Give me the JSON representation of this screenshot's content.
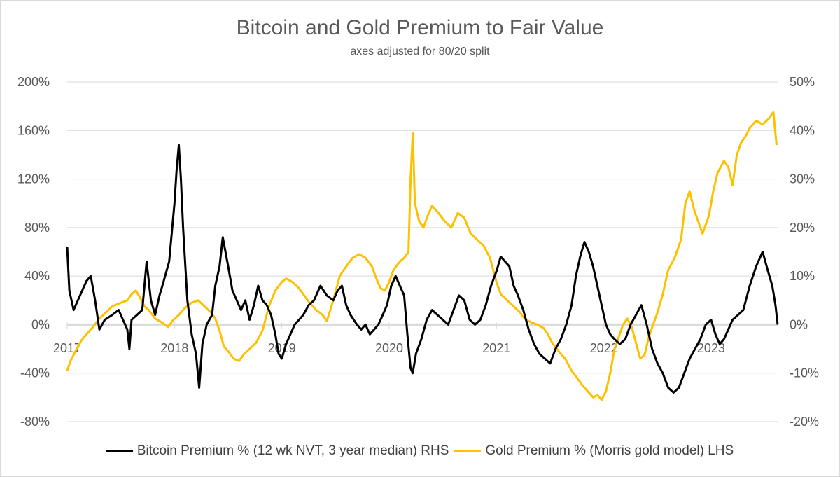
{
  "chart_data": {
    "type": "line",
    "title": "Bitcoin and Gold Premium to Fair Value",
    "subtitle": "axes adjusted for 80/20 split",
    "x_labels": [
      "2017",
      "2018",
      "2019",
      "2020",
      "2021",
      "2022",
      "2023"
    ],
    "x_range": [
      2017.0,
      2023.62
    ],
    "y_left": {
      "ticks": [
        "200%",
        "160%",
        "120%",
        "80%",
        "40%",
        "0%",
        "-40%",
        "-80%"
      ],
      "range": [
        -80,
        200
      ]
    },
    "y_right": {
      "ticks": [
        "50%",
        "40%",
        "30%",
        "20%",
        "10%",
        "0%",
        "-10%",
        "-20%"
      ],
      "range": [
        -20,
        50
      ]
    },
    "grid": true,
    "legend_position": "bottom",
    "series": [
      {
        "name": "Bitcoin Premium % (12 wk NVT, 3 year median) RHS",
        "axis": "right",
        "color": "#000000",
        "points": [
          [
            2017.0,
            16
          ],
          [
            2017.02,
            7
          ],
          [
            2017.06,
            3
          ],
          [
            2017.1,
            5
          ],
          [
            2017.14,
            7
          ],
          [
            2017.18,
            9
          ],
          [
            2017.22,
            10
          ],
          [
            2017.26,
            5
          ],
          [
            2017.3,
            -1
          ],
          [
            2017.35,
            1
          ],
          [
            2017.42,
            2
          ],
          [
            2017.48,
            3
          ],
          [
            2017.52,
            1
          ],
          [
            2017.56,
            -1
          ],
          [
            2017.58,
            -5
          ],
          [
            2017.6,
            1
          ],
          [
            2017.65,
            2
          ],
          [
            2017.7,
            3
          ],
          [
            2017.74,
            13
          ],
          [
            2017.78,
            5
          ],
          [
            2017.82,
            2
          ],
          [
            2017.86,
            6
          ],
          [
            2017.9,
            9
          ],
          [
            2017.95,
            13
          ],
          [
            2018.0,
            25
          ],
          [
            2018.02,
            32
          ],
          [
            2018.04,
            37
          ],
          [
            2018.06,
            30
          ],
          [
            2018.08,
            20
          ],
          [
            2018.12,
            5
          ],
          [
            2018.16,
            -2
          ],
          [
            2018.2,
            -6
          ],
          [
            2018.23,
            -13
          ],
          [
            2018.26,
            -4
          ],
          [
            2018.3,
            0
          ],
          [
            2018.35,
            2
          ],
          [
            2018.38,
            8
          ],
          [
            2018.42,
            12
          ],
          [
            2018.45,
            18
          ],
          [
            2018.5,
            12
          ],
          [
            2018.54,
            7
          ],
          [
            2018.58,
            5
          ],
          [
            2018.62,
            3
          ],
          [
            2018.66,
            5
          ],
          [
            2018.7,
            1
          ],
          [
            2018.74,
            4
          ],
          [
            2018.78,
            8
          ],
          [
            2018.82,
            5
          ],
          [
            2018.86,
            4
          ],
          [
            2018.9,
            2
          ],
          [
            2018.94,
            -2
          ],
          [
            2018.97,
            -6
          ],
          [
            2019.0,
            -7
          ],
          [
            2019.04,
            -4
          ],
          [
            2019.08,
            -2
          ],
          [
            2019.12,
            0
          ],
          [
            2019.16,
            1
          ],
          [
            2019.2,
            2
          ],
          [
            2019.25,
            4
          ],
          [
            2019.3,
            5
          ],
          [
            2019.36,
            8
          ],
          [
            2019.42,
            6
          ],
          [
            2019.48,
            5
          ],
          [
            2019.52,
            7
          ],
          [
            2019.56,
            8
          ],
          [
            2019.6,
            4
          ],
          [
            2019.64,
            2
          ],
          [
            2019.7,
            0
          ],
          [
            2019.74,
            -1
          ],
          [
            2019.78,
            0
          ],
          [
            2019.82,
            -2
          ],
          [
            2019.86,
            -1
          ],
          [
            2019.9,
            0
          ],
          [
            2019.94,
            2
          ],
          [
            2019.98,
            4
          ],
          [
            2020.02,
            8
          ],
          [
            2020.06,
            10
          ],
          [
            2020.1,
            8
          ],
          [
            2020.14,
            6
          ],
          [
            2020.17,
            -2
          ],
          [
            2020.2,
            -9
          ],
          [
            2020.22,
            -10
          ],
          [
            2020.25,
            -6
          ],
          [
            2020.3,
            -3
          ],
          [
            2020.35,
            1
          ],
          [
            2020.4,
            3
          ],
          [
            2020.45,
            2
          ],
          [
            2020.5,
            1
          ],
          [
            2020.55,
            0
          ],
          [
            2020.6,
            3
          ],
          [
            2020.65,
            6
          ],
          [
            2020.7,
            5
          ],
          [
            2020.75,
            1
          ],
          [
            2020.8,
            0
          ],
          [
            2020.85,
            1
          ],
          [
            2020.9,
            4
          ],
          [
            2020.95,
            8
          ],
          [
            2021.0,
            11
          ],
          [
            2021.04,
            14
          ],
          [
            2021.08,
            13
          ],
          [
            2021.12,
            12
          ],
          [
            2021.16,
            8
          ],
          [
            2021.2,
            6
          ],
          [
            2021.25,
            3
          ],
          [
            2021.3,
            -1
          ],
          [
            2021.35,
            -4
          ],
          [
            2021.4,
            -6
          ],
          [
            2021.45,
            -7
          ],
          [
            2021.5,
            -8
          ],
          [
            2021.55,
            -5
          ],
          [
            2021.6,
            -3
          ],
          [
            2021.65,
            0
          ],
          [
            2021.7,
            4
          ],
          [
            2021.74,
            10
          ],
          [
            2021.78,
            14
          ],
          [
            2021.82,
            17
          ],
          [
            2021.86,
            15
          ],
          [
            2021.9,
            12
          ],
          [
            2021.94,
            8
          ],
          [
            2021.98,
            4
          ],
          [
            2022.02,
            0
          ],
          [
            2022.06,
            -2
          ],
          [
            2022.1,
            -3
          ],
          [
            2022.15,
            -4
          ],
          [
            2022.2,
            -3
          ],
          [
            2022.25,
            0
          ],
          [
            2022.3,
            2
          ],
          [
            2022.35,
            4
          ],
          [
            2022.4,
            0
          ],
          [
            2022.45,
            -5
          ],
          [
            2022.5,
            -8
          ],
          [
            2022.55,
            -10
          ],
          [
            2022.6,
            -13
          ],
          [
            2022.65,
            -14
          ],
          [
            2022.7,
            -13
          ],
          [
            2022.75,
            -10
          ],
          [
            2022.8,
            -7
          ],
          [
            2022.85,
            -5
          ],
          [
            2022.9,
            -3
          ],
          [
            2022.95,
            0
          ],
          [
            2023.0,
            1
          ],
          [
            2023.04,
            -2
          ],
          [
            2023.08,
            -4
          ],
          [
            2023.12,
            -3
          ],
          [
            2023.16,
            -1
          ],
          [
            2023.2,
            1
          ],
          [
            2023.25,
            2
          ],
          [
            2023.3,
            3
          ],
          [
            2023.36,
            8
          ],
          [
            2023.42,
            12
          ],
          [
            2023.48,
            15
          ],
          [
            2023.53,
            11
          ],
          [
            2023.57,
            8
          ],
          [
            2023.6,
            4
          ],
          [
            2023.62,
            0
          ]
        ]
      },
      {
        "name": "Gold Premium % (Morris gold model) LHS",
        "axis": "left",
        "color": "#ffc000",
        "points": [
          [
            2017.0,
            -38
          ],
          [
            2017.03,
            -30
          ],
          [
            2017.06,
            -25
          ],
          [
            2017.1,
            -18
          ],
          [
            2017.14,
            -12
          ],
          [
            2017.18,
            -8
          ],
          [
            2017.24,
            -2
          ],
          [
            2017.3,
            5
          ],
          [
            2017.36,
            10
          ],
          [
            2017.42,
            15
          ],
          [
            2017.5,
            18
          ],
          [
            2017.56,
            20
          ],
          [
            2017.6,
            25
          ],
          [
            2017.64,
            28
          ],
          [
            2017.68,
            22
          ],
          [
            2017.72,
            15
          ],
          [
            2017.76,
            12
          ],
          [
            2017.82,
            5
          ],
          [
            2017.88,
            2
          ],
          [
            2017.94,
            -2
          ],
          [
            2017.98,
            3
          ],
          [
            2018.04,
            8
          ],
          [
            2018.1,
            14
          ],
          [
            2018.16,
            18
          ],
          [
            2018.22,
            20
          ],
          [
            2018.28,
            15
          ],
          [
            2018.34,
            10
          ],
          [
            2018.38,
            5
          ],
          [
            2018.42,
            -5
          ],
          [
            2018.46,
            -18
          ],
          [
            2018.5,
            -22
          ],
          [
            2018.55,
            -28
          ],
          [
            2018.6,
            -30
          ],
          [
            2018.65,
            -24
          ],
          [
            2018.7,
            -20
          ],
          [
            2018.76,
            -15
          ],
          [
            2018.82,
            -5
          ],
          [
            2018.88,
            15
          ],
          [
            2018.94,
            28
          ],
          [
            2019.0,
            35
          ],
          [
            2019.04,
            38
          ],
          [
            2019.1,
            35
          ],
          [
            2019.16,
            30
          ],
          [
            2019.2,
            25
          ],
          [
            2019.26,
            18
          ],
          [
            2019.32,
            12
          ],
          [
            2019.38,
            8
          ],
          [
            2019.42,
            3
          ],
          [
            2019.48,
            20
          ],
          [
            2019.54,
            40
          ],
          [
            2019.6,
            48
          ],
          [
            2019.66,
            55
          ],
          [
            2019.72,
            58
          ],
          [
            2019.78,
            55
          ],
          [
            2019.84,
            48
          ],
          [
            2019.88,
            38
          ],
          [
            2019.92,
            30
          ],
          [
            2019.96,
            28
          ],
          [
            2020.0,
            35
          ],
          [
            2020.04,
            45
          ],
          [
            2020.1,
            52
          ],
          [
            2020.14,
            55
          ],
          [
            2020.18,
            60
          ],
          [
            2020.2,
            120
          ],
          [
            2020.22,
            158
          ],
          [
            2020.24,
            100
          ],
          [
            2020.28,
            85
          ],
          [
            2020.32,
            80
          ],
          [
            2020.36,
            90
          ],
          [
            2020.4,
            98
          ],
          [
            2020.46,
            92
          ],
          [
            2020.52,
            85
          ],
          [
            2020.58,
            80
          ],
          [
            2020.64,
            92
          ],
          [
            2020.7,
            88
          ],
          [
            2020.76,
            75
          ],
          [
            2020.82,
            70
          ],
          [
            2020.88,
            65
          ],
          [
            2020.94,
            55
          ],
          [
            2021.0,
            35
          ],
          [
            2021.04,
            25
          ],
          [
            2021.1,
            20
          ],
          [
            2021.16,
            15
          ],
          [
            2021.22,
            10
          ],
          [
            2021.26,
            5
          ],
          [
            2021.32,
            2
          ],
          [
            2021.38,
            0
          ],
          [
            2021.44,
            -3
          ],
          [
            2021.48,
            -8
          ],
          [
            2021.52,
            -15
          ],
          [
            2021.58,
            -22
          ],
          [
            2021.64,
            -28
          ],
          [
            2021.7,
            -38
          ],
          [
            2021.76,
            -45
          ],
          [
            2021.8,
            -50
          ],
          [
            2021.86,
            -56
          ],
          [
            2021.9,
            -60
          ],
          [
            2021.94,
            -58
          ],
          [
            2021.98,
            -62
          ],
          [
            2022.02,
            -55
          ],
          [
            2022.06,
            -40
          ],
          [
            2022.1,
            -20
          ],
          [
            2022.14,
            -10
          ],
          [
            2022.18,
            0
          ],
          [
            2022.22,
            5
          ],
          [
            2022.26,
            -2
          ],
          [
            2022.3,
            -15
          ],
          [
            2022.34,
            -28
          ],
          [
            2022.38,
            -25
          ],
          [
            2022.42,
            -10
          ],
          [
            2022.46,
            0
          ],
          [
            2022.5,
            10
          ],
          [
            2022.55,
            25
          ],
          [
            2022.6,
            45
          ],
          [
            2022.66,
            55
          ],
          [
            2022.72,
            70
          ],
          [
            2022.76,
            100
          ],
          [
            2022.8,
            110
          ],
          [
            2022.84,
            95
          ],
          [
            2022.88,
            85
          ],
          [
            2022.92,
            75
          ],
          [
            2022.98,
            90
          ],
          [
            2023.02,
            110
          ],
          [
            2023.06,
            125
          ],
          [
            2023.12,
            135
          ],
          [
            2023.16,
            130
          ],
          [
            2023.2,
            115
          ],
          [
            2023.24,
            140
          ],
          [
            2023.28,
            150
          ],
          [
            2023.32,
            155
          ],
          [
            2023.36,
            162
          ],
          [
            2023.42,
            168
          ],
          [
            2023.48,
            165
          ],
          [
            2023.54,
            170
          ],
          [
            2023.58,
            175
          ],
          [
            2023.61,
            148
          ]
        ]
      }
    ]
  }
}
